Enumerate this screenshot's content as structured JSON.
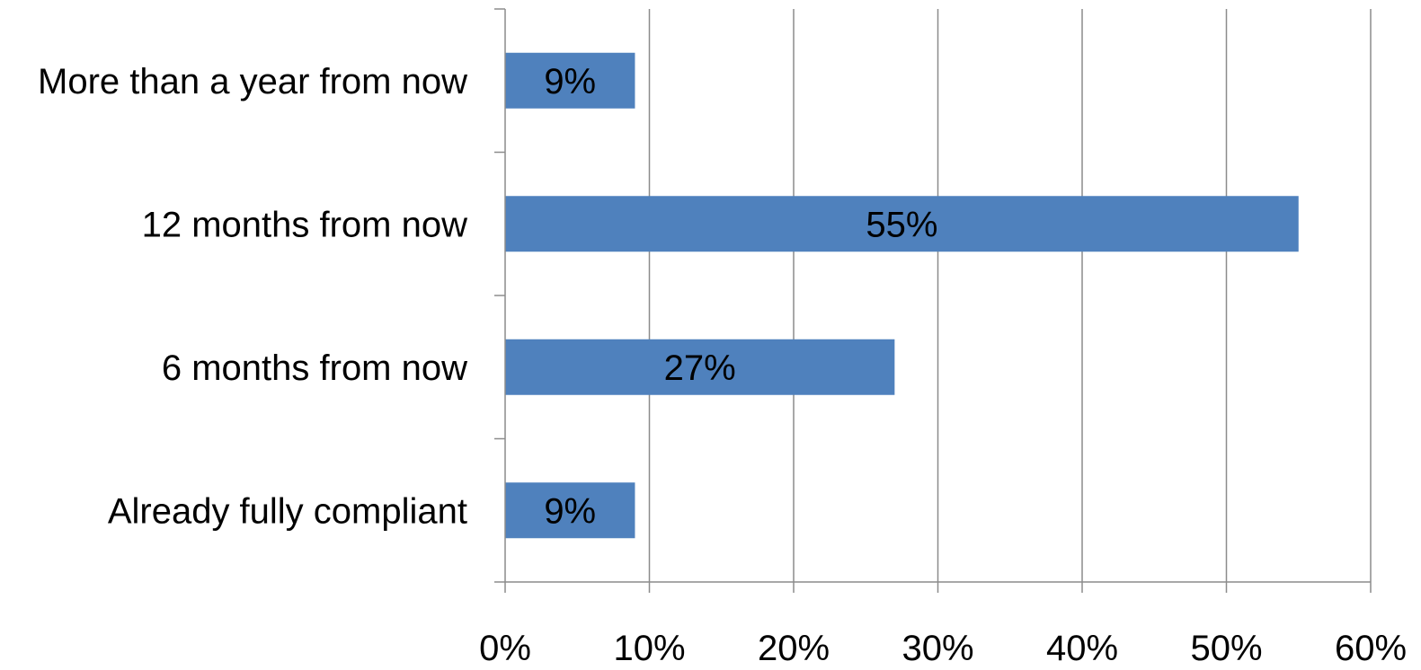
{
  "chart_data": {
    "type": "bar",
    "orientation": "horizontal",
    "categories": [
      "More than a year from now",
      "12 months from now",
      "6 months from now",
      "Already fully compliant"
    ],
    "values": [
      9,
      55,
      27,
      9
    ],
    "data_labels": [
      "9%",
      "55%",
      "27%",
      "9%"
    ],
    "x_ticks": [
      "0%",
      "10%",
      "20%",
      "30%",
      "40%",
      "50%",
      "60%"
    ],
    "xlim": [
      0,
      60
    ],
    "grid": true,
    "legend": "none",
    "bar_color": "#4f81bd",
    "grid_color": "#8c8c8c"
  }
}
